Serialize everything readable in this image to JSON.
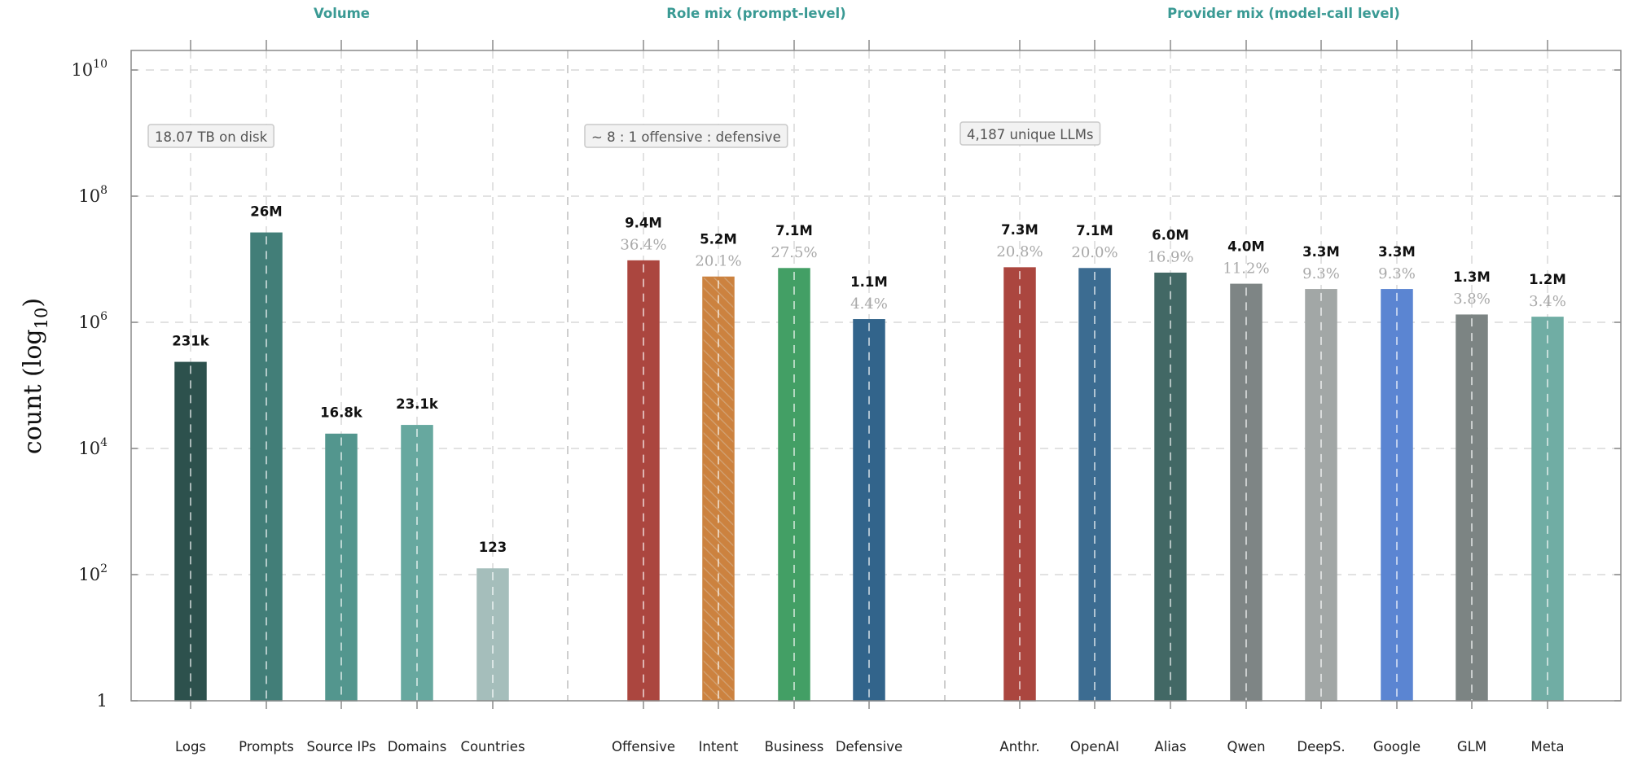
{
  "chart_data": {
    "type": "bar",
    "ylabel": "count (log",
    "ylabel_sub": "10",
    "ylabel_close": ")",
    "yscale": "log10",
    "ylim": [
      1,
      10000000000
    ],
    "yticks": [
      {
        "value": 1,
        "base": "1",
        "exp": ""
      },
      {
        "value": 100,
        "base": "10",
        "exp": "2"
      },
      {
        "value": 10000,
        "base": "10",
        "exp": "4"
      },
      {
        "value": 1000000,
        "base": "10",
        "exp": "6"
      },
      {
        "value": 100000000,
        "base": "10",
        "exp": "8"
      },
      {
        "value": 10000000000,
        "base": "10",
        "exp": "10"
      }
    ],
    "grid": true,
    "groups": [
      {
        "title": "Volume",
        "annotation": "18.07 TB on disk",
        "bars": [
          {
            "category": "Logs",
            "value": 231000,
            "label": "231k",
            "color": "#355f5b"
          },
          {
            "category": "Prompts",
            "value": 26000000,
            "label": "26M",
            "color": "#4e948d"
          },
          {
            "category": "Source IPs",
            "value": 16800,
            "label": "16.8k",
            "color": "#62b0a7"
          },
          {
            "category": "Domains",
            "value": 23100,
            "label": "23.1k",
            "color": "#79c6bb"
          },
          {
            "category": "Countries",
            "value": 123,
            "label": "123",
            "color": "#c2dfdc"
          }
        ]
      },
      {
        "title": "Role mix (prompt-level)",
        "annotation": "∼ 8 : 1 offensive : defensive",
        "bars": [
          {
            "category": "Offensive",
            "value": 9400000,
            "label": "9.4M",
            "pct": "36.4%",
            "color": "#c9524a"
          },
          {
            "category": "Intent",
            "value": 5200000,
            "label": "5.2M",
            "pct": "20.1%",
            "color": "#f0994a",
            "hatch": true
          },
          {
            "category": "Business",
            "value": 7100000,
            "label": "7.1M",
            "pct": "27.5%",
            "color": "#4fbb77"
          },
          {
            "category": "Defensive",
            "value": 1100000,
            "label": "1.1M",
            "pct": "4.4%",
            "color": "#3b76a3"
          }
        ]
      },
      {
        "title": "Provider mix (model-call level)",
        "annotation": "4,187 unique LLMs",
        "bars": [
          {
            "category": "Anthr.",
            "value": 7300000,
            "label": "7.3M",
            "pct": "20.8%",
            "color": "#c9524a"
          },
          {
            "category": "OpenAI",
            "value": 7100000,
            "label": "7.1M",
            "pct": "20.0%",
            "color": "#467fab"
          },
          {
            "category": "Alias",
            "value": 6000000,
            "label": "6.0M",
            "pct": "16.9%",
            "color": "#4e7a77"
          },
          {
            "category": "Qwen",
            "value": 4000000,
            "label": "4.0M",
            "pct": "11.2%",
            "color": "#949d9c"
          },
          {
            "category": "DeepS.",
            "value": 3300000,
            "label": "3.3M",
            "pct": "9.3%",
            "color": "#bfc4c3"
          },
          {
            "category": "Google",
            "value": 3300000,
            "label": "3.3M",
            "pct": "9.3%",
            "color": "#6b9df7"
          },
          {
            "category": "GLM",
            "value": 1300000,
            "label": "1.3M",
            "pct": "3.8%",
            "color": "#929b9a"
          },
          {
            "category": "Meta",
            "value": 1200000,
            "label": "1.2M",
            "pct": "3.4%",
            "color": "#84cbc1"
          }
        ]
      }
    ]
  }
}
